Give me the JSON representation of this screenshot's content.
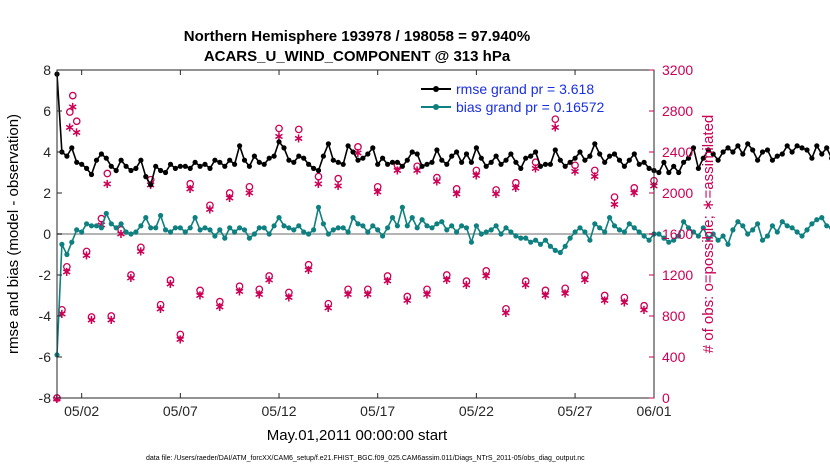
{
  "chart_data": {
    "type": "line",
    "title_line1": "Northern Hemisphere 193978 / 198058 = 97.940%",
    "title_line2": "ACARS_U_WIND_COMPONENT @ 313 hPa",
    "xlabel": "May.01,2011 00:00:00 start",
    "ylabel_left": "rmse and bias (model - observation)",
    "ylabel_right": "# of obs: o=possible; ∗=assimilated",
    "footer": "data file: /Users/raeder/DAI/ATM_forcXX/CAM6_setup/f.e21.FHIST_BGC.f09_025.CAM6assim.011/Diags_NTrS_2011-05/obs_diag_output.nc",
    "xlim": [
      0.75,
      31.0
    ],
    "ylim_left": [
      -8,
      8
    ],
    "ylim_right": [
      0,
      3200
    ],
    "x_ticks": [
      {
        "value": 2,
        "label": "05/02"
      },
      {
        "value": 7,
        "label": "05/07"
      },
      {
        "value": 12,
        "label": "05/12"
      },
      {
        "value": 17,
        "label": "05/17"
      },
      {
        "value": 22,
        "label": "05/22"
      },
      {
        "value": 27,
        "label": "05/27"
      },
      {
        "value": 31,
        "label": "06/01"
      }
    ],
    "y_ticks_left": [
      -8,
      -6,
      -4,
      -2,
      0,
      2,
      4,
      6,
      8
    ],
    "y_ticks_right": [
      0,
      400,
      800,
      1200,
      1600,
      2000,
      2400,
      2800,
      3200
    ],
    "x_step_days": 0.25,
    "series": [
      {
        "name": "rmse",
        "label": "rmse grand pr = 3.618",
        "color": "#000000",
        "x_start": 0.75,
        "values": [
          7.8,
          4.0,
          3.8,
          4.2,
          3.5,
          3.4,
          3.2,
          2.9,
          3.6,
          3.9,
          3.7,
          3.3,
          3.1,
          3.6,
          3.3,
          3.1,
          3.2,
          3.6,
          2.8,
          2.4,
          3.3,
          3.1,
          3.0,
          3.4,
          3.2,
          3.3,
          3.3,
          3.2,
          3.5,
          3.3,
          3.4,
          3.2,
          3.6,
          3.5,
          3.3,
          3.6,
          3.4,
          4.3,
          3.6,
          3.3,
          3.8,
          3.5,
          3.4,
          3.7,
          3.8,
          4.5,
          4.2,
          3.6,
          3.5,
          3.8,
          3.7,
          3.4,
          3.2,
          3.1,
          3.8,
          4.4,
          3.6,
          3.5,
          3.4,
          4.3,
          4.0,
          3.6,
          3.7,
          3.9,
          4.2,
          3.4,
          3.7,
          3.4,
          3.5,
          3.5,
          3.3,
          3.6,
          4.0,
          3.9,
          3.3,
          3.4,
          3.5,
          4.1,
          3.6,
          3.4,
          3.8,
          4.0,
          3.5,
          3.9,
          3.5,
          4.2,
          3.7,
          3.3,
          3.5,
          3.8,
          3.4,
          3.6,
          3.9,
          3.5,
          3.2,
          3.7,
          3.8,
          4.0,
          3.3,
          3.4,
          3.4,
          4.1,
          3.6,
          3.3,
          3.5,
          3.7,
          4.0,
          3.6,
          3.8,
          4.4,
          3.9,
          3.5,
          3.8,
          3.9,
          3.6,
          3.3,
          3.6,
          3.9,
          3.4,
          3.5,
          3.2,
          3.1,
          3.0,
          3.5,
          3.0,
          3.3,
          3.0,
          3.5,
          3.7,
          4.2,
          3.2,
          3.7,
          4.1,
          3.9,
          3.6,
          4.0,
          4.2,
          4.0,
          4.3,
          3.9,
          4.4,
          4.1,
          3.6,
          4.0,
          4.1,
          3.6,
          3.8,
          3.9,
          4.3,
          4.0,
          4.3,
          4.2,
          4.1,
          3.7,
          4.3,
          3.9,
          4.2,
          3.7,
          3.4,
          3.9,
          3.5,
          3.1,
          2.7,
          2.8,
          3.4,
          3.0,
          3.3,
          3.2,
          3.4,
          3.2,
          3.3,
          3.5,
          3.0,
          3.3,
          3.4,
          3.6,
          3.2,
          3.3,
          3.5,
          3.3,
          3.1,
          3.3,
          3.5,
          3.3,
          3.5,
          3.4,
          3.6,
          3.4,
          3.3,
          3.5,
          3.2,
          3.4,
          3.1,
          3.2
        ]
      },
      {
        "name": "bias",
        "label": "bias grand pr = 0.16572",
        "color": "#0f8080",
        "x_start": 0.75,
        "values": [
          -5.9,
          -0.5,
          -1.0,
          -0.4,
          0.2,
          0.1,
          0.5,
          0.4,
          0.4,
          0.3,
          1.0,
          0.5,
          0.3,
          0.5,
          0.1,
          0.0,
          0.1,
          0.4,
          0.8,
          0.3,
          0.3,
          0.9,
          0.2,
          0.1,
          0.3,
          0.3,
          0.1,
          0.3,
          0.8,
          0.2,
          0.3,
          0.2,
          -0.1,
          0.2,
          -0.2,
          0.3,
          0.1,
          0.3,
          0.2,
          -0.2,
          0.0,
          0.3,
          0.3,
          0.0,
          0.4,
          0.8,
          0.4,
          0.3,
          0.2,
          0.4,
          0.1,
          0.0,
          0.2,
          1.3,
          0.5,
          0.0,
          0.2,
          0.3,
          0.3,
          0.1,
          0.8,
          0.5,
          0.4,
          0.1,
          0.4,
          0.2,
          -0.1,
          0.3,
          0.8,
          0.4,
          1.3,
          0.4,
          0.8,
          0.3,
          0.7,
          0.4,
          0.3,
          0.5,
          0.6,
          0.2,
          0.4,
          0.1,
          0.4,
          0.3,
          -0.4,
          0.4,
          0.0,
          0.1,
          0.2,
          0.4,
          0.0,
          0.3,
          0.1,
          -0.1,
          -0.2,
          -0.2,
          -0.4,
          -0.3,
          -0.5,
          -0.3,
          -0.6,
          -0.8,
          -0.9,
          -0.6,
          -0.2,
          0.1,
          0.3,
          0.1,
          -0.3,
          0.5,
          0.3,
          0.1,
          0.8,
          0.4,
          0.2,
          0.1,
          0.5,
          0.3,
          0.1,
          -0.1,
          -0.3,
          0.0,
          0.0,
          -0.2,
          -0.4,
          -0.3,
          -0.1,
          0.6,
          0.3,
          0.1,
          -0.1,
          0.3,
          -0.2,
          0.0,
          -0.3,
          -0.1,
          -0.5,
          0.2,
          0.6,
          0.4,
          0.0,
          0.2,
          0.5,
          -0.3,
          -0.1,
          0.4,
          0.1,
          0.6,
          0.4,
          0.3,
          0.1,
          -0.1,
          0.2,
          0.5,
          0.7,
          0.8,
          0.4,
          0.3,
          0.6,
          0.4,
          0.2,
          0.5,
          0.3,
          0.6,
          0.2,
          0.4,
          0.4,
          0.1,
          0.3,
          0.2,
          0.0,
          -0.1,
          0.1,
          0.3,
          0.0,
          -0.3,
          0.4,
          0.1,
          0.2,
          0.6,
          0.0,
          -0.1,
          0.2,
          0.3,
          0.0,
          -0.3,
          -0.1,
          0.2,
          0.1,
          -0.1,
          0.0,
          -0.3,
          -0.6,
          0.2
        ]
      }
    ],
    "obs_possible": [
      [
        0.75,
        0
      ],
      [
        1.0,
        860
      ],
      [
        1.25,
        1280
      ],
      [
        1.4,
        2790
      ],
      [
        1.55,
        2950
      ],
      [
        1.75,
        2700
      ],
      [
        2.25,
        1430
      ],
      [
        2.5,
        790
      ],
      [
        3.0,
        1750
      ],
      [
        3.3,
        2190
      ],
      [
        3.5,
        800
      ],
      [
        4.0,
        1640
      ],
      [
        4.5,
        1200
      ],
      [
        5.0,
        1470
      ],
      [
        5.5,
        2130
      ],
      [
        6.0,
        910
      ],
      [
        6.5,
        1150
      ],
      [
        7.0,
        620
      ],
      [
        7.5,
        2090
      ],
      [
        8.0,
        1050
      ],
      [
        8.5,
        1880
      ],
      [
        9.0,
        940
      ],
      [
        9.5,
        2000
      ],
      [
        10.0,
        1090
      ],
      [
        10.5,
        2060
      ],
      [
        11.0,
        1060
      ],
      [
        11.5,
        1190
      ],
      [
        12.0,
        2630
      ],
      [
        12.5,
        1030
      ],
      [
        13.0,
        2620
      ],
      [
        13.5,
        1300
      ],
      [
        14.0,
        2160
      ],
      [
        14.5,
        920
      ],
      [
        15.0,
        2140
      ],
      [
        15.5,
        1060
      ],
      [
        16.0,
        2450
      ],
      [
        16.5,
        1060
      ],
      [
        17.0,
        2060
      ],
      [
        17.5,
        1190
      ],
      [
        18.0,
        2270
      ],
      [
        18.5,
        990
      ],
      [
        19.0,
        2260
      ],
      [
        19.5,
        1060
      ],
      [
        20.0,
        2150
      ],
      [
        20.5,
        1200
      ],
      [
        21.0,
        2040
      ],
      [
        21.5,
        1140
      ],
      [
        22.0,
        2220
      ],
      [
        22.5,
        1240
      ],
      [
        23.0,
        2030
      ],
      [
        23.5,
        870
      ],
      [
        24.0,
        2100
      ],
      [
        24.5,
        1140
      ],
      [
        25.0,
        2300
      ],
      [
        25.5,
        1050
      ],
      [
        26.0,
        2720
      ],
      [
        26.5,
        1070
      ],
      [
        27.0,
        2270
      ],
      [
        27.5,
        1200
      ],
      [
        28.0,
        2220
      ],
      [
        28.5,
        1000
      ],
      [
        29.0,
        1960
      ],
      [
        29.5,
        980
      ],
      [
        30.0,
        2050
      ],
      [
        30.5,
        900
      ],
      [
        31.0,
        2120
      ]
    ],
    "obs_assimilated": [
      [
        0.75,
        0
      ],
      [
        1.0,
        830
      ],
      [
        1.25,
        1240
      ],
      [
        1.4,
        2650
      ],
      [
        1.55,
        2850
      ],
      [
        1.75,
        2600
      ],
      [
        2.25,
        1400
      ],
      [
        2.5,
        770
      ],
      [
        3.0,
        1700
      ],
      [
        3.3,
        2100
      ],
      [
        3.5,
        770
      ],
      [
        4.0,
        1610
      ],
      [
        4.5,
        1180
      ],
      [
        5.0,
        1440
      ],
      [
        5.5,
        2090
      ],
      [
        6.0,
        880
      ],
      [
        6.5,
        1120
      ],
      [
        7.0,
        580
      ],
      [
        7.5,
        2050
      ],
      [
        8.0,
        1010
      ],
      [
        8.5,
        1850
      ],
      [
        9.0,
        900
      ],
      [
        9.5,
        1960
      ],
      [
        10.0,
        1050
      ],
      [
        10.5,
        2010
      ],
      [
        11.0,
        1020
      ],
      [
        11.5,
        1160
      ],
      [
        12.0,
        2560
      ],
      [
        12.5,
        990
      ],
      [
        13.0,
        2540
      ],
      [
        13.5,
        1260
      ],
      [
        14.0,
        2100
      ],
      [
        14.5,
        890
      ],
      [
        15.0,
        2080
      ],
      [
        15.5,
        1020
      ],
      [
        16.0,
        2400
      ],
      [
        16.5,
        1020
      ],
      [
        17.0,
        2020
      ],
      [
        17.5,
        1150
      ],
      [
        18.0,
        2230
      ],
      [
        18.5,
        960
      ],
      [
        19.0,
        2230
      ],
      [
        19.5,
        1020
      ],
      [
        20.0,
        2120
      ],
      [
        20.5,
        1160
      ],
      [
        21.0,
        2000
      ],
      [
        21.5,
        1110
      ],
      [
        22.0,
        2180
      ],
      [
        22.5,
        1200
      ],
      [
        23.0,
        2000
      ],
      [
        23.5,
        840
      ],
      [
        24.0,
        2060
      ],
      [
        24.5,
        1110
      ],
      [
        25.0,
        2250
      ],
      [
        25.5,
        1010
      ],
      [
        26.0,
        2650
      ],
      [
        26.5,
        1030
      ],
      [
        27.0,
        2220
      ],
      [
        27.5,
        1160
      ],
      [
        28.0,
        2170
      ],
      [
        28.5,
        960
      ],
      [
        29.0,
        1900
      ],
      [
        29.5,
        940
      ],
      [
        30.0,
        2010
      ],
      [
        30.5,
        870
      ],
      [
        31.0,
        2080
      ]
    ]
  },
  "colors": {
    "count_axis": "#cc0055",
    "legend_text": "#1a2fe0",
    "zero_line": "#b4b4b4"
  }
}
